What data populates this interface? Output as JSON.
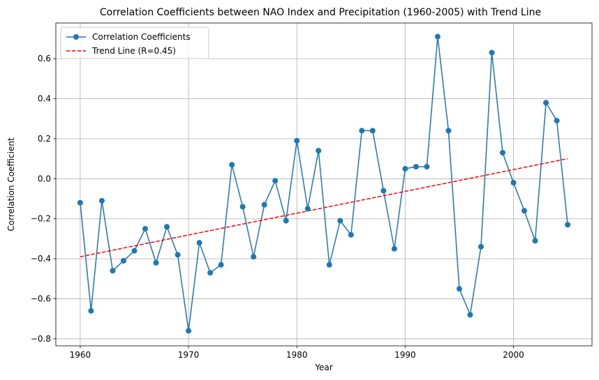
{
  "chart_data": {
    "type": "line",
    "title": "Correlation Coefficients between NAO Index and Precipitation (1960-2005) with Trend Line",
    "xlabel": "Year",
    "ylabel": "Correlation Coefficient",
    "xlim": [
      1957.75,
      2007.25
    ],
    "ylim": [
      -0.835,
      0.778
    ],
    "x_ticks": [
      1960,
      1970,
      1980,
      1990,
      2000
    ],
    "y_ticks": [
      -0.8,
      -0.6,
      -0.4,
      -0.2,
      0.0,
      0.2,
      0.4,
      0.6
    ],
    "y_tick_labels": [
      "−0.8",
      "−0.6",
      "−0.4",
      "−0.2",
      "0.0",
      "0.2",
      "0.4",
      "0.6"
    ],
    "grid": true,
    "legend_position": "top-left",
    "x": [
      1960,
      1961,
      1962,
      1963,
      1964,
      1965,
      1966,
      1967,
      1968,
      1969,
      1970,
      1971,
      1972,
      1973,
      1974,
      1975,
      1976,
      1977,
      1978,
      1979,
      1980,
      1981,
      1982,
      1983,
      1984,
      1985,
      1986,
      1987,
      1988,
      1989,
      1990,
      1991,
      1992,
      1993,
      1994,
      1995,
      1996,
      1997,
      1998,
      1999,
      2000,
      2001,
      2002,
      2003,
      2004,
      2005
    ],
    "series": [
      {
        "name": "Correlation Coefficients",
        "style": "line-marker",
        "color": "#1f77b4",
        "values": [
          -0.12,
          -0.66,
          -0.11,
          -0.46,
          -0.41,
          -0.36,
          -0.25,
          -0.42,
          -0.24,
          -0.38,
          -0.76,
          -0.32,
          -0.47,
          -0.43,
          0.07,
          -0.14,
          -0.39,
          -0.13,
          -0.01,
          -0.21,
          0.19,
          -0.15,
          0.14,
          -0.43,
          -0.21,
          -0.28,
          0.24,
          0.24,
          -0.06,
          -0.35,
          0.05,
          0.06,
          0.06,
          0.71,
          0.24,
          -0.55,
          -0.68,
          -0.34,
          0.63,
          0.13,
          -0.02,
          -0.16,
          -0.31,
          0.38,
          0.29,
          -0.23
        ]
      },
      {
        "name": "Trend Line (R=0.45)",
        "style": "dashed",
        "color": "#ff0000",
        "x": [
          1960,
          2005
        ],
        "values": [
          -0.39,
          0.1
        ]
      }
    ]
  }
}
